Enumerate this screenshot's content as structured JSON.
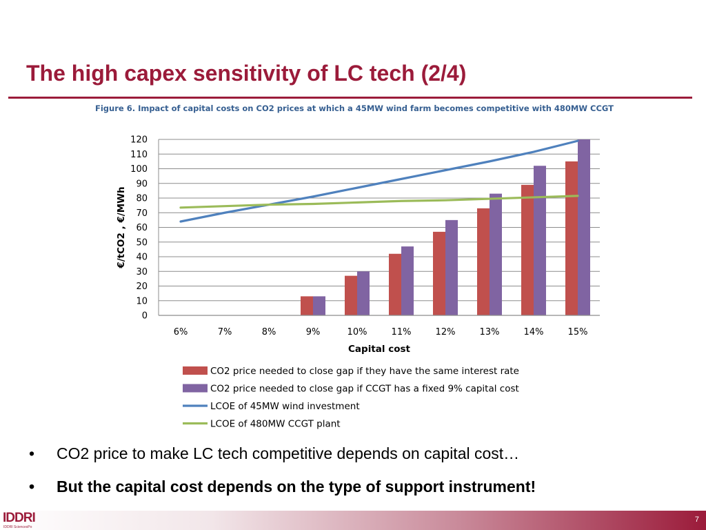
{
  "slide": {
    "title": "The high capex sensitivity of LC tech (2/4)",
    "caption": "Figure 6. Impact of capital costs on CO2 prices at which a 45MW wind farm becomes competitive with 480MW CCGT",
    "bullets": [
      "CO2 price to make LC tech competitive depends on capital cost…",
      "But the capital cost depends on the type of support instrument!"
    ],
    "bullet_symbol": "•",
    "logo": "IDDRI",
    "logo_sub": "IDDRI SciencesPo",
    "page_number": "7"
  },
  "chart_data": {
    "type": "bar",
    "title": "",
    "xlabel": "Capital cost",
    "ylabel": "€/tCO2 , €/MWh",
    "categories": [
      "6%",
      "7%",
      "8%",
      "9%",
      "10%",
      "11%",
      "12%",
      "13%",
      "14%",
      "15%"
    ],
    "ylim": [
      0,
      120
    ],
    "yticks": [
      0,
      10,
      20,
      30,
      40,
      50,
      60,
      70,
      80,
      90,
      100,
      110,
      120
    ],
    "grid": true,
    "legend_position": "bottom",
    "series": [
      {
        "name": "CO2 price needed to close gap if they have the same interest rate",
        "kind": "bar",
        "color": "#c0504d",
        "values": [
          0,
          0,
          0,
          13,
          27,
          42,
          57,
          73,
          89,
          105
        ]
      },
      {
        "name": "CO2 price needed to close gap if CCGT has a fixed 9% capital cost",
        "kind": "bar",
        "color": "#8064a2",
        "values": [
          0,
          0,
          0,
          13,
          30,
          47,
          65,
          83,
          102,
          120
        ]
      },
      {
        "name": "LCOE of 45MW wind investment",
        "kind": "line",
        "color": "#4f81bd",
        "values": [
          64,
          70,
          75.5,
          81,
          87,
          93,
          99,
          105,
          111.5,
          119
        ]
      },
      {
        "name": "LCOE of 480MW CCGT plant",
        "kind": "line",
        "color": "#9bbb59",
        "values": [
          73.5,
          74.5,
          75.5,
          76,
          77,
          78,
          78.5,
          79.5,
          80.5,
          81.5
        ]
      }
    ]
  }
}
